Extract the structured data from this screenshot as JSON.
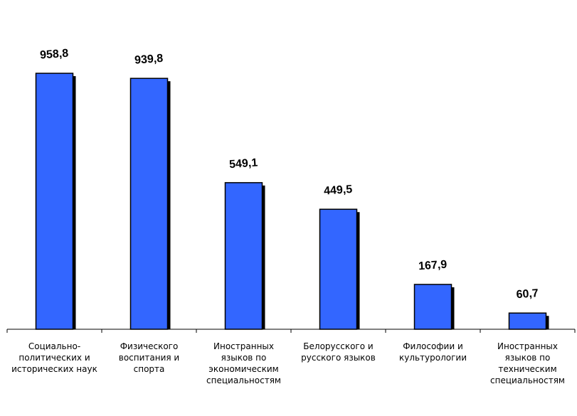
{
  "chart_data": {
    "type": "bar",
    "categories": [
      "Социально-\nполитических и\nисторических наук",
      "Физического\nвоспитания и\nспорта",
      "Иностранных\nязыков по\nэкономическим\nспециальностям",
      "Белорусского и\nрусского языков",
      "Философии и\nкультурологии",
      "Иностранных\nязыков по\nтехническим\nспециальностям"
    ],
    "values": [
      958.8,
      939.8,
      549.1,
      449.5,
      167.9,
      60.7
    ],
    "value_labels": [
      "958,8",
      "939,8",
      "549,1",
      "449,5",
      "167,9",
      "60,7"
    ],
    "ylim": [
      0,
      1000
    ],
    "grid": false,
    "legend": "none",
    "colors": {
      "bar": "#3366ff",
      "shadow": "#000000",
      "axis": "#000000"
    }
  }
}
